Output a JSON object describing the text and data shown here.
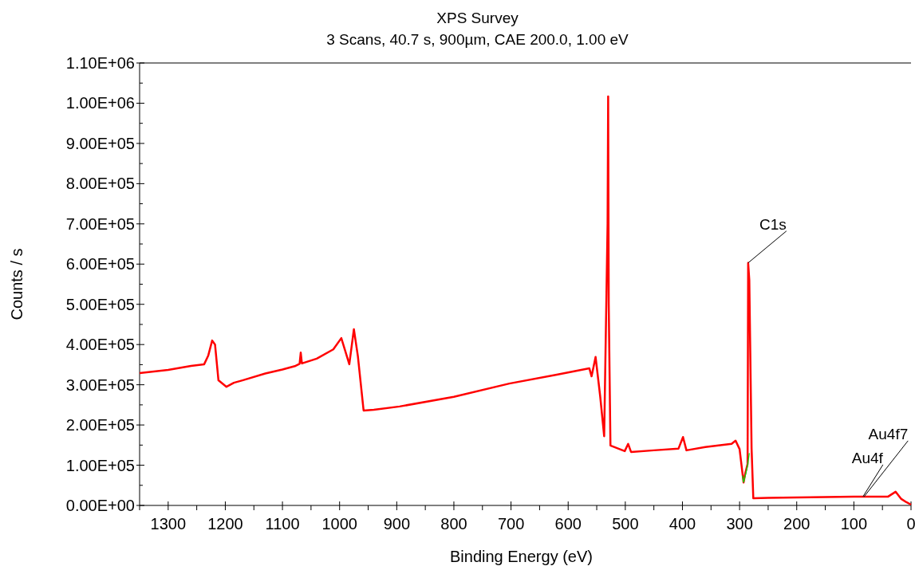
{
  "chart_data": {
    "type": "line",
    "title": "XPS Survey",
    "subtitle": "3 Scans,  40.7 s,  900µm,  CAE 200.0,  1.00 eV",
    "xlabel": "Binding Energy (eV)",
    "ylabel": "Counts / s",
    "xlim": [
      1350,
      0
    ],
    "xticks": [
      1300,
      1200,
      1100,
      1000,
      900,
      800,
      700,
      600,
      500,
      400,
      300,
      200,
      100,
      0
    ],
    "ylim": [
      0,
      1100000
    ],
    "yticks": [
      {
        "value": 0,
        "label": "0.00E+00"
      },
      {
        "value": 100000,
        "label": "1.00E+05"
      },
      {
        "value": 200000,
        "label": "2.00E+05"
      },
      {
        "value": 300000,
        "label": "3.00E+05"
      },
      {
        "value": 400000,
        "label": "4.00E+05"
      },
      {
        "value": 500000,
        "label": "5.00E+05"
      },
      {
        "value": 600000,
        "label": "6.00E+05"
      },
      {
        "value": 700000,
        "label": "7.00E+05"
      },
      {
        "value": 800000,
        "label": "8.00E+05"
      },
      {
        "value": 900000,
        "label": "9.00E+05"
      },
      {
        "value": 1000000,
        "label": "1.00E+06"
      },
      {
        "value": 1100000,
        "label": "1.10E+06"
      }
    ],
    "grid": false,
    "marker": "none",
    "line_style": "solid",
    "series": [
      {
        "color": "#ff0000",
        "x": [
          1350,
          1300,
          1260,
          1237,
          1230,
          1223,
          1218,
          1212,
          1198,
          1185,
          1170,
          1130,
          1100,
          1077,
          1070,
          1068,
          1066,
          1040,
          1011,
          997,
          983,
          975,
          968,
          958,
          940,
          895,
          800,
          703,
          620,
          563,
          559,
          552,
          544,
          537,
          531,
          530,
          529,
          526,
          501,
          495,
          490,
          450,
          407,
          399,
          393,
          360,
          314,
          307,
          300,
          293,
          290,
          286,
          285,
          283,
          279,
          276,
          250,
          200,
          150,
          100,
          60,
          40,
          27,
          17,
          8,
          0
        ],
        "values": [
          329000,
          337000,
          347000,
          351000,
          372000,
          410000,
          400000,
          311000,
          295000,
          305000,
          311000,
          328000,
          338000,
          347000,
          352000,
          380000,
          353000,
          365000,
          388000,
          416000,
          351000,
          438000,
          371000,
          236000,
          238000,
          246000,
          270000,
          303000,
          325000,
          341000,
          321000,
          369000,
          272000,
          172000,
          700000,
          1017000,
          500000,
          149000,
          135000,
          153000,
          133000,
          137000,
          141000,
          170000,
          137000,
          145000,
          153000,
          161000,
          140000,
          57000,
          80000,
          103000,
          603000,
          560000,
          141000,
          18000,
          19000,
          20000,
          21000,
          22000,
          22000,
          22000,
          34000,
          16000,
          8000,
          2000
        ]
      },
      {
        "color": "#00dd00",
        "x": [
          295,
          293,
          289,
          286,
          283
        ],
        "values": [
          74000,
          58000,
          80000,
          100000,
          130000
        ]
      }
    ],
    "annotations": [
      {
        "text": "C1s",
        "x": 285,
        "y": 603000
      },
      {
        "text": "Au4f",
        "x": 84,
        "y": 22000
      },
      {
        "text": "Au4f7",
        "x": 82,
        "y": 22000
      }
    ]
  }
}
